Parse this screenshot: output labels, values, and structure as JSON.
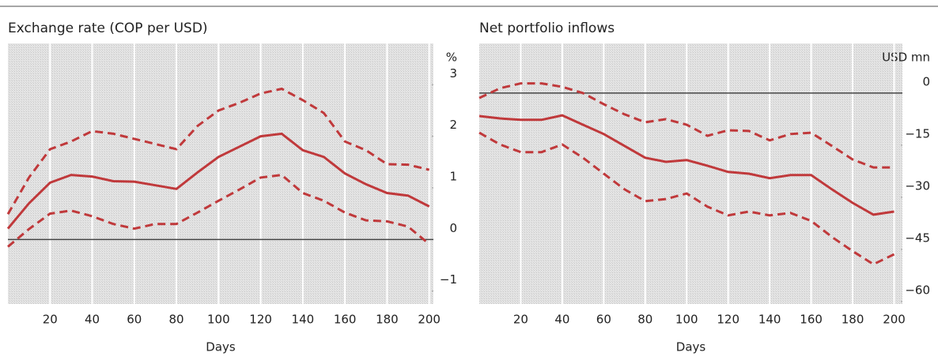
{
  "chart_data": [
    {
      "type": "line",
      "title": "Exchange rate (COP per USD)",
      "y_unit": "%",
      "xlabel": "Days",
      "x": [
        0,
        10,
        20,
        30,
        40,
        50,
        60,
        70,
        80,
        90,
        100,
        110,
        120,
        130,
        140,
        150,
        160,
        170,
        180,
        190,
        200
      ],
      "xlim": [
        0,
        202
      ],
      "xticks": [
        20,
        40,
        60,
        80,
        100,
        120,
        140,
        160,
        180,
        200
      ],
      "ylim": [
        -1.25,
        3.8
      ],
      "yticks": [
        {
          "value": -1,
          "label": "−1"
        },
        0,
        1,
        2,
        3
      ],
      "grid": true,
      "series": [
        {
          "color": "#c0393b",
          "style": "solid",
          "values": [
            0.21,
            0.7,
            1.1,
            1.25,
            1.22,
            1.13,
            1.12,
            1.05,
            0.98,
            1.3,
            1.6,
            1.8,
            2.0,
            2.05,
            1.73,
            1.6,
            1.28,
            1.07,
            0.9,
            0.85,
            0.64
          ]
        },
        {
          "color": "#c0393b",
          "style": "dashed",
          "values": [
            0.49,
            1.2,
            1.75,
            1.9,
            2.1,
            2.05,
            1.95,
            1.85,
            1.75,
            2.2,
            2.5,
            2.65,
            2.83,
            2.92,
            2.7,
            2.45,
            1.9,
            1.73,
            1.46,
            1.45,
            1.35
          ]
        },
        {
          "color": "#c0393b",
          "style": "dashed",
          "values": [
            -0.14,
            0.2,
            0.5,
            0.56,
            0.45,
            0.3,
            0.21,
            0.3,
            0.3,
            0.52,
            0.75,
            0.97,
            1.2,
            1.25,
            0.9,
            0.75,
            0.52,
            0.37,
            0.35,
            0.25,
            -0.09
          ]
        }
      ]
    },
    {
      "type": "line",
      "title": "Net portfolio inflows",
      "y_unit": "USD mn",
      "xlabel": "Days",
      "x": [
        0,
        10,
        20,
        30,
        40,
        50,
        60,
        70,
        80,
        90,
        100,
        110,
        120,
        130,
        140,
        150,
        160,
        170,
        180,
        190,
        200
      ],
      "xlim": [
        0,
        204
      ],
      "xticks": [
        20,
        40,
        60,
        80,
        100,
        120,
        140,
        160,
        180,
        200
      ],
      "ylim": [
        -60.7,
        14.3
      ],
      "yticks": [
        0,
        {
          "value": -15,
          "label": "−15"
        },
        {
          "value": -30,
          "label": "−30"
        },
        {
          "value": -45,
          "label": "−45"
        },
        {
          "value": -60,
          "label": "−60"
        }
      ],
      "grid": true,
      "series": [
        {
          "color": "#c0393b",
          "style": "solid",
          "values": [
            -6.6,
            -7.3,
            -7.7,
            -7.7,
            -6.4,
            -9.1,
            -11.8,
            -15.2,
            -18.6,
            -19.8,
            -19.3,
            -20.9,
            -22.7,
            -23.2,
            -24.5,
            -23.6,
            -23.6,
            -27.7,
            -31.6,
            -35,
            -34.1
          ]
        },
        {
          "color": "#c0393b",
          "style": "dashed",
          "values": [
            -1.4,
            1.4,
            2.8,
            2.8,
            1.8,
            0,
            -3.2,
            -6.1,
            -8.4,
            -7.5,
            -9.1,
            -12.3,
            -10.7,
            -10.9,
            -13.6,
            -11.8,
            -11.4,
            -15.2,
            -19.1,
            -21.4,
            -21.4
          ]
        },
        {
          "color": "#c0393b",
          "style": "dashed",
          "values": [
            -11.4,
            -14.8,
            -17,
            -17,
            -14.8,
            -18.6,
            -23.2,
            -27.7,
            -31.1,
            -30.5,
            -28.9,
            -32.7,
            -35.2,
            -34.1,
            -35.2,
            -34.5,
            -36.8,
            -41.4,
            -45.5,
            -49.3,
            -46.4
          ]
        }
      ]
    }
  ]
}
